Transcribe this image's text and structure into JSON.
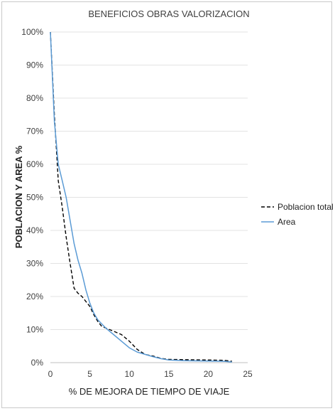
{
  "chart_data": {
    "type": "line",
    "title": "BENEFICIOS OBRAS VALORIZACION",
    "xlabel": "% DE MEJORA DE TIEMPO DE VIAJE",
    "ylabel": "POBLACION Y AREA  %",
    "xlim": [
      0,
      25
    ],
    "ylim": [
      0,
      100
    ],
    "x_ticks": [
      0,
      5,
      10,
      15,
      20,
      25
    ],
    "x_tick_labels": [
      "0",
      "5",
      "10",
      "15",
      "20",
      "25"
    ],
    "y_ticks": [
      0,
      10,
      20,
      30,
      40,
      50,
      60,
      70,
      80,
      90,
      100
    ],
    "y_tick_labels": [
      "0%",
      "10%",
      "20%",
      "30%",
      "40%",
      "50%",
      "60%",
      "70%",
      "80%",
      "90%",
      "100%"
    ],
    "grid": "horizontal",
    "legend_position": "right",
    "series": [
      {
        "name": "Poblacion total",
        "color": "#000000",
        "dash": "dashed",
        "x": [
          0,
          0.5,
          1,
          1.5,
          2,
          2.5,
          3,
          3.5,
          4,
          4.5,
          5,
          5.5,
          6,
          6.5,
          7,
          8,
          9,
          10,
          11,
          12,
          13,
          14,
          15,
          17,
          20,
          22,
          23
        ],
        "y": [
          100,
          75,
          55,
          47,
          38,
          30,
          22.5,
          21,
          20,
          18.5,
          17,
          14.5,
          12.5,
          11,
          10.5,
          9.5,
          8.5,
          6.5,
          4,
          2.5,
          2,
          1.3,
          1,
          0.9,
          0.8,
          0.7,
          0.4
        ]
      },
      {
        "name": "Area",
        "color": "#5b9bd5",
        "dash": "solid",
        "x": [
          0,
          0.5,
          1,
          1.5,
          2,
          2.5,
          3,
          3.5,
          4,
          4.5,
          5,
          5.5,
          6,
          7,
          8,
          9,
          10,
          11,
          12,
          13,
          14,
          15,
          17,
          20,
          22,
          23
        ],
        "y": [
          100,
          73,
          60,
          55,
          50,
          43,
          36,
          31,
          27,
          22,
          18,
          15,
          13,
          10.5,
          8.5,
          6.5,
          4.5,
          3.2,
          2.5,
          1.8,
          1.2,
          0.8,
          0.6,
          0.5,
          0.4,
          0.2
        ]
      }
    ]
  }
}
